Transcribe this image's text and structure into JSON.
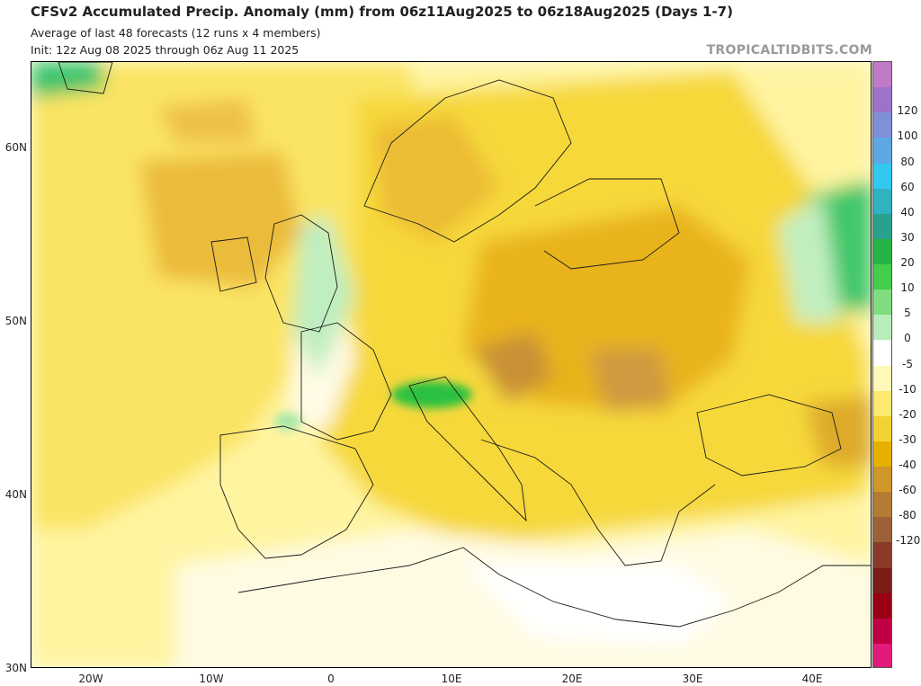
{
  "header": {
    "title": "CFSv2 Accumulated Precip. Anomaly (mm) from 06z11Aug2025 to 06z18Aug2025 (Days 1-7)",
    "subtitle1": "Average of last 48 forecasts (12 runs x 4 members)",
    "subtitle2": "Init: 12z Aug 08 2025 through 06z Aug 11 2025",
    "brand": "TROPICALTIDBITS.COM"
  },
  "axes": {
    "lat_labels": [
      "60N",
      "50N",
      "40N",
      "30N"
    ],
    "lon_labels": [
      "20W",
      "10W",
      "0",
      "10E",
      "20E",
      "30E",
      "40E"
    ]
  },
  "colorbar": {
    "labels": [
      "120",
      "100",
      "80",
      "60",
      "40",
      "30",
      "20",
      "10",
      "5",
      "0",
      "-5",
      "-10",
      "-20",
      "-30",
      "-40",
      "-60",
      "-80",
      "-120"
    ],
    "colors": [
      "#c07ac6",
      "#9e72c8",
      "#7f8fd8",
      "#5da8e4",
      "#33c8f0",
      "#2fb3c0",
      "#2aa18c",
      "#26b545",
      "#43cd4c",
      "#7fdc7f",
      "#b8ecb8",
      "#ffffff",
      "#fff8b8",
      "#fbe970",
      "#f3d233",
      "#e6b000",
      "#cf9628",
      "#b47c33",
      "#9c6136",
      "#8a3a28",
      "#7a1d16",
      "#990014",
      "#c00044",
      "#e21a7a"
    ]
  }
}
